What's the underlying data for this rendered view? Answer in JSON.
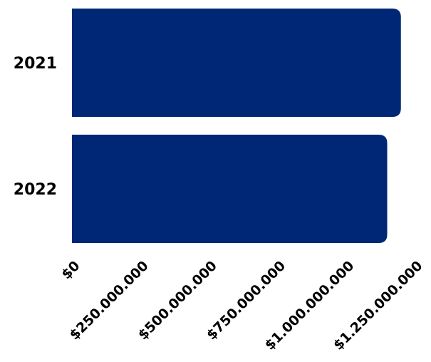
{
  "chart_data": {
    "type": "bar",
    "orientation": "horizontal",
    "categories": [
      "2021",
      "2022"
    ],
    "values": [
      1200000000,
      1150000000
    ],
    "x_ticks": [
      0,
      250000000,
      500000000,
      750000000,
      1000000000,
      1250000000
    ],
    "x_tick_labels": [
      "$0",
      "$250.000.000",
      "$500.000.000",
      "$750.000.000",
      "$1.000.000.000",
      "$1.250.000.000"
    ],
    "xlim": [
      0,
      1250000000
    ],
    "title": "",
    "xlabel": "",
    "ylabel": "",
    "grid": false,
    "bar_color": "#002776"
  }
}
